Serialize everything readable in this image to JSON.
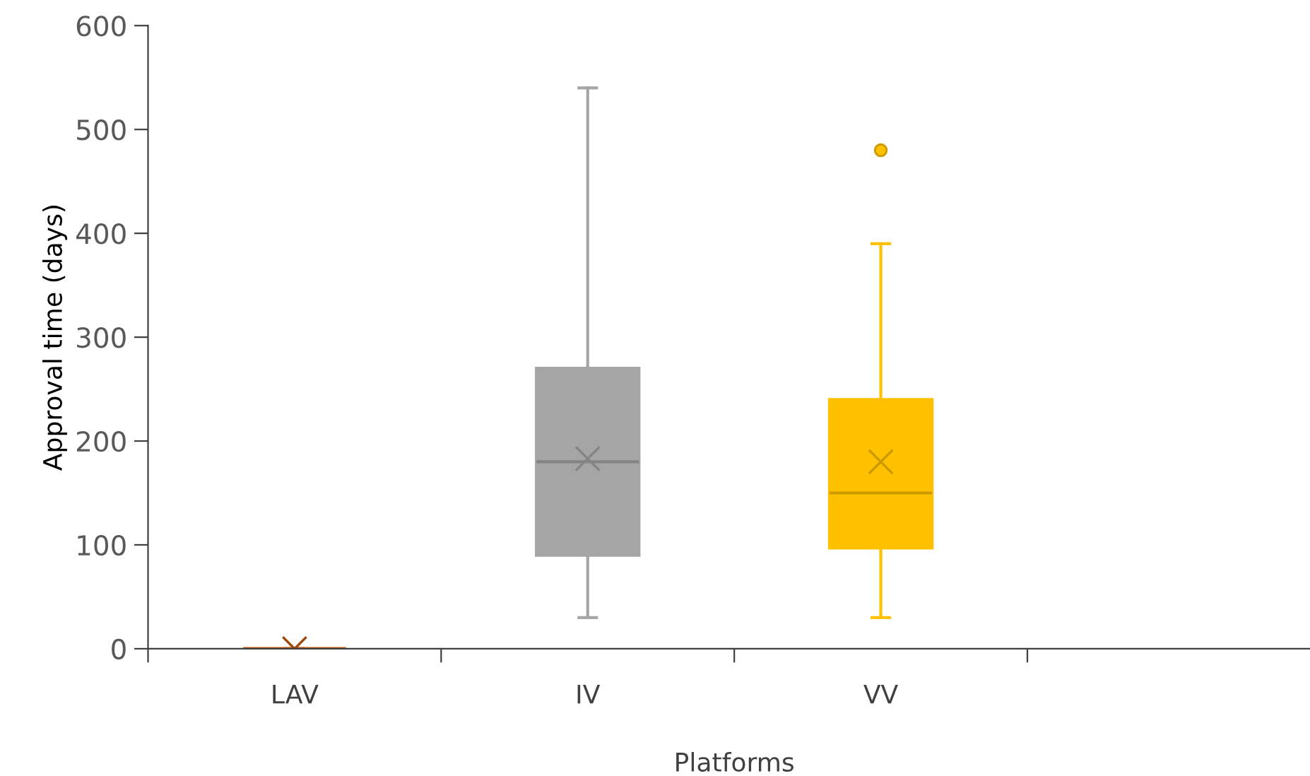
{
  "chart_data": {
    "type": "box",
    "xlabel": "Platforms",
    "ylabel": "Approval time (days)",
    "categories": [
      "LAV",
      "IV",
      "VV",
      null
    ],
    "series": [
      {
        "color": "#c55a11",
        "boxes": [
          {
            "low": 0,
            "q1": 0,
            "median": 0,
            "q3": 0,
            "high": 0,
            "mean": 0
          },
          null,
          null,
          null
        ]
      },
      {
        "color": "#a5a5a5",
        "boxes": [
          null,
          {
            "low": 30,
            "q1": 90,
            "median": 180,
            "q3": 270,
            "high": 540,
            "mean": 183
          },
          null,
          null
        ]
      },
      {
        "color": "#ffc000",
        "boxes": [
          null,
          null,
          {
            "low": 30,
            "q1": 97,
            "median": 150,
            "q3": 240,
            "high": 390,
            "mean": 180,
            "outliers": [
              480
            ]
          },
          null
        ]
      }
    ],
    "ylim": [
      0,
      600
    ],
    "yticks": [
      0,
      100,
      200,
      300,
      400,
      500,
      600
    ],
    "grid": false,
    "legend": false
  }
}
